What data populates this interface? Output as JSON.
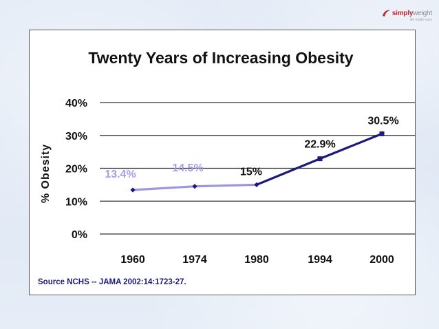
{
  "logo": {
    "brand_a": "simply",
    "brand_b": "weight",
    "tagline": "life made easy"
  },
  "chart_data": {
    "type": "line",
    "title": "Twenty Years of Increasing Obesity",
    "ylabel": "% Obesity",
    "xlabel": "",
    "x": [
      "1960",
      "1974",
      "1980",
      "1994",
      "2000"
    ],
    "series": [
      {
        "values": [
          13.4,
          14.5,
          15,
          22.9,
          30.5
        ]
      }
    ],
    "data_labels": [
      "13.4%",
      "14.5%",
      "15%",
      "22.9%",
      "30.5%"
    ],
    "yticks": [
      "0%",
      "10%",
      "20%",
      "30%",
      "40%"
    ],
    "ylim": [
      0,
      40
    ],
    "grid": true,
    "colors": {
      "early": "#9b98dd",
      "late": "#1a1a7c",
      "early_label": "#a3a0e6",
      "late_label": "#111111"
    },
    "annotations": [
      "Source NCHS -- JAMA 2002:14:1723-27."
    ]
  }
}
